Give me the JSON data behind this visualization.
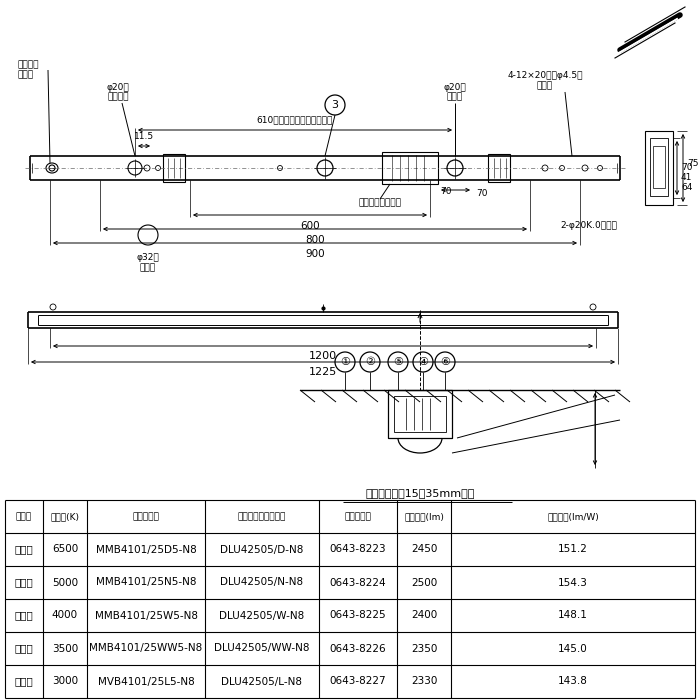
{
  "bg_color": "#ffffff",
  "line_color": "#000000",
  "table_header": [
    "光源色",
    "色温度(K)",
    "組合せ品名",
    "ライトユニット品名",
    "商品コード",
    "定格光束(lm)",
    "消費効率(lm/W)"
  ],
  "table_rows": [
    [
      "昼光色",
      "6500",
      "MMB4101/25D5-N8",
      "DLU42505/D-N8",
      "0643-8223",
      "2450",
      "151.2"
    ],
    [
      "昼白色",
      "5000",
      "MMB4101/25N5-N8",
      "DLU42505/N-N8",
      "0643-8224",
      "2500",
      "154.3"
    ],
    [
      "白　色",
      "4000",
      "MMB4101/25W5-N8",
      "DLU42505/W-N8",
      "0643-8225",
      "2400",
      "148.1"
    ],
    [
      "温白色",
      "3500",
      "MMB4101/25WW5-N8",
      "DLU42505/WW-N8",
      "0643-8226",
      "2350",
      "145.0"
    ],
    [
      "電球色",
      "3000",
      "MVB4101/25L5-N8",
      "DLU42505/L-N8",
      "0643-8227",
      "2330",
      "143.8"
    ]
  ]
}
